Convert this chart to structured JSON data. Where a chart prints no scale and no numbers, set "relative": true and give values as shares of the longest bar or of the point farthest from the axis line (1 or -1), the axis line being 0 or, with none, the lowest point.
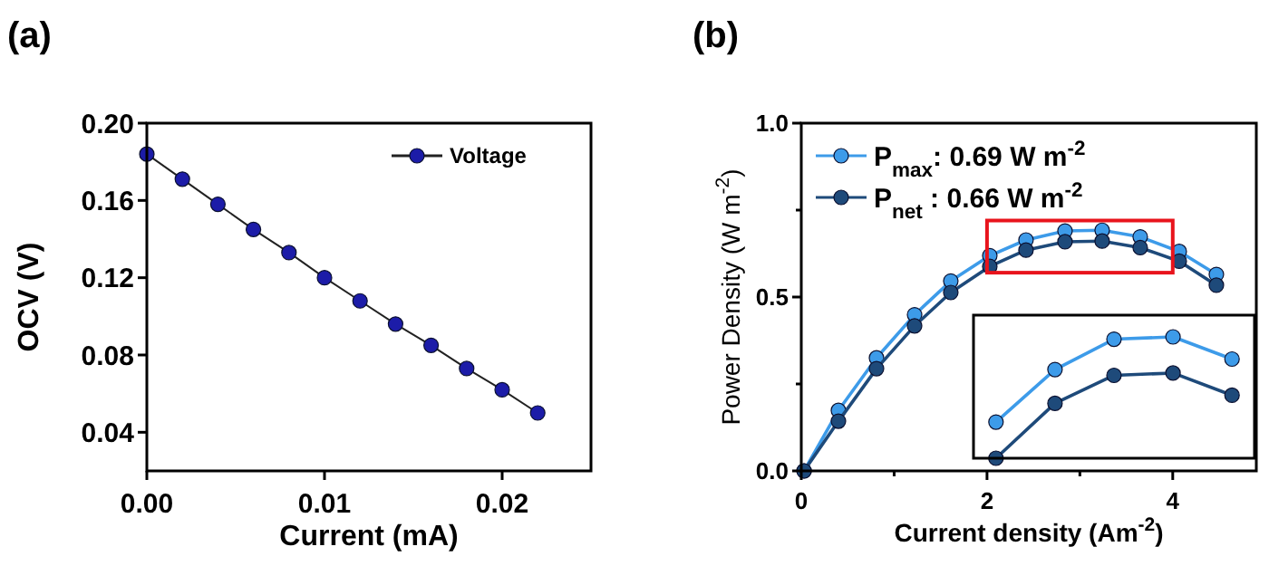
{
  "chart_data": [
    {
      "type": "line",
      "title": "(a)",
      "xlabel": "Current (mA)",
      "ylabel": "OCV (V)",
      "xlim": [
        0,
        0.025
      ],
      "ylim": [
        0.02,
        0.2
      ],
      "xticks": [
        {
          "value": 0,
          "label": "0.00"
        },
        0.01,
        0.02
      ],
      "yticks": [
        0.04,
        0.08,
        0.12,
        0.16,
        {
          "value": 0.2,
          "label": "0.20"
        }
      ],
      "legend": "top right",
      "marker": "circle",
      "x": [
        0,
        0.002,
        0.004,
        0.006,
        0.008,
        0.01,
        0.012,
        0.014,
        0.016,
        0.018,
        0.02,
        0.022
      ],
      "series": [
        {
          "name": "Voltage",
          "color": "#1c1ca8",
          "values": [
            0.184,
            0.171,
            0.158,
            0.145,
            0.133,
            0.12,
            0.108,
            0.096,
            0.085,
            0.073,
            0.062,
            0.05
          ]
        }
      ]
    },
    {
      "type": "line",
      "title": "(b)",
      "xlabel": "Current density (Am$^{-2}$)",
      "ylabel": "Power Density (W m$^{-2}$)",
      "xlim": [
        0,
        4.9
      ],
      "ylim": [
        0,
        1
      ],
      "xticks": [
        0,
        {
          "value": 1,
          "label": null
        },
        2,
        {
          "value": 3,
          "label": null
        },
        4
      ],
      "yticks": [
        {
          "value": 0,
          "label": "0.0"
        },
        {
          "value": 0.25,
          "label": null
        },
        0.5,
        {
          "value": 0.75,
          "label": null
        },
        {
          "value": 1,
          "label": "1.0"
        }
      ],
      "legend": "top left",
      "marker": "circle",
      "x": [
        0.03,
        0.4,
        0.81,
        1.22,
        1.61,
        2.03,
        2.42,
        2.84,
        3.24,
        3.65,
        4.07,
        4.47
      ],
      "series": [
        {
          "name": "P$_{max}$: 0.69 W m$^{-2}$",
          "color": "#3d9be9",
          "values": [
            0,
            0.174,
            0.325,
            0.449,
            0.546,
            0.619,
            0.664,
            0.69,
            0.692,
            0.673,
            0.631,
            0.565
          ]
        },
        {
          "name": "P$_{net}$ : 0.66 W m$^{-2}$",
          "color": "#1e4a7a",
          "values": [
            0,
            0.143,
            0.294,
            0.417,
            0.513,
            0.588,
            0.635,
            0.659,
            0.661,
            0.642,
            0.603,
            0.534
          ]
        }
      ]
    },
    {
      "type": "line",
      "relative": true,
      "marker": "circle",
      "categories": [
        null,
        null,
        null,
        null,
        null
      ],
      "series": [
        {
          "color": "#3d9be9",
          "values": [
            0.298,
            0.731,
            0.981,
            1,
            0.817
          ]
        },
        {
          "color": "#1e4a7a",
          "values": [
            0,
            0.452,
            0.683,
            0.702,
            0.519
          ]
        }
      ]
    }
  ]
}
